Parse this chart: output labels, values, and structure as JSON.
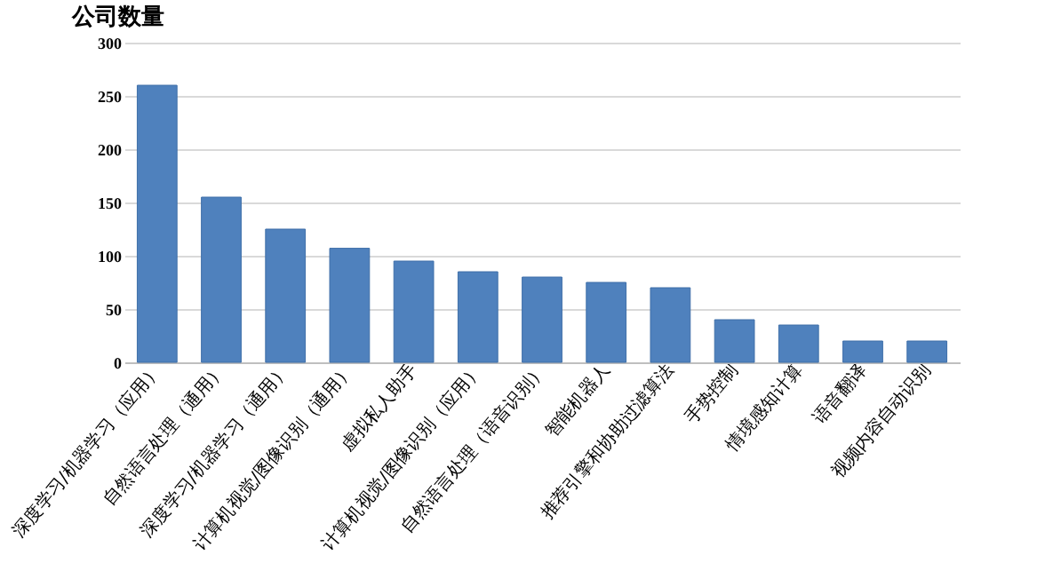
{
  "chart_data": {
    "type": "bar",
    "ylabel": "公司数量",
    "categories": [
      "深度学习/机器学习（应用）",
      "自然语言处理（通用）",
      "深度学习/机器学习（通用）",
      "计算机视觉/图像识别（通用）",
      "虚拟私人助手",
      "计算机视觉/图像识别（应用）",
      "自然语言处理（语音识别）",
      "智能机器人",
      "推荐引擎和协助过滤算法",
      "手势控制",
      "情境感知计算",
      "语音翻译",
      "视频内容自动识别"
    ],
    "values": [
      260,
      155,
      125,
      107,
      95,
      85,
      80,
      75,
      70,
      40,
      35,
      20,
      20
    ],
    "color": "#4f81bd",
    "ylim": [
      0,
      300
    ],
    "yticks": [
      0,
      50,
      100,
      150,
      200,
      250,
      300
    ],
    "grid": "y"
  }
}
